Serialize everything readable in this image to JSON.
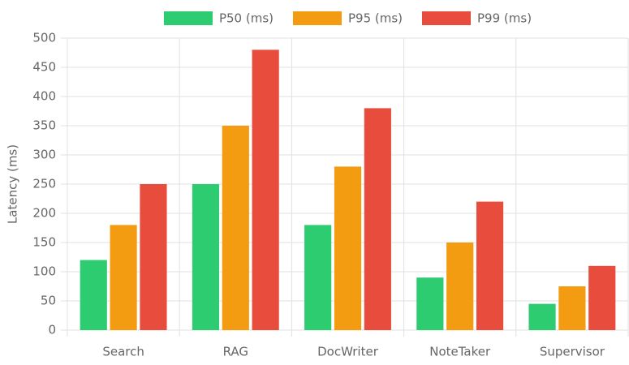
{
  "chart_data": {
    "type": "bar",
    "y_label": "Latency (ms)",
    "categories": [
      "Search",
      "RAG",
      "DocWriter",
      "NoteTaker",
      "Supervisor"
    ],
    "series": [
      {
        "name": "P50 (ms)",
        "color": "#2ecc71",
        "values": [
          120,
          250,
          180,
          90,
          45
        ]
      },
      {
        "name": "P95 (ms)",
        "color": "#f39c12",
        "values": [
          180,
          350,
          280,
          150,
          75
        ]
      },
      {
        "name": "P99 (ms)",
        "color": "#e74c3c",
        "values": [
          250,
          480,
          380,
          220,
          110
        ]
      }
    ],
    "ylim": [
      0,
      500
    ],
    "yticks": [
      0,
      50,
      100,
      150,
      200,
      250,
      300,
      350,
      400,
      450,
      500
    ],
    "grid": true,
    "legend": "top"
  }
}
